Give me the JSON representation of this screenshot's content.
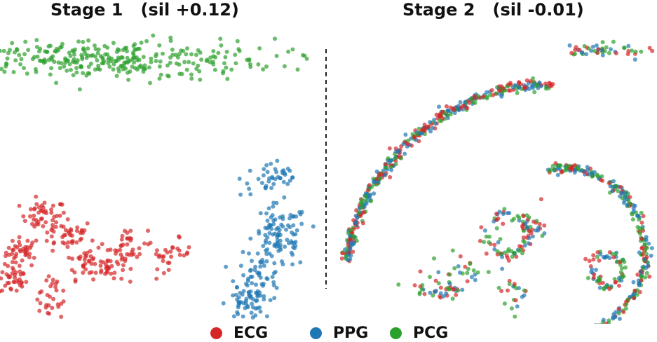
{
  "titles": {
    "left": "Stage 1   (sil +0.12)",
    "right": "Stage 2   (sil -0.01)"
  },
  "colors": {
    "ECG": "#d62728",
    "PPG": "#1f77b4",
    "PCG": "#2ca02c"
  },
  "legend": [
    {
      "label": "ECG",
      "color": "#d62728"
    },
    {
      "label": "PPG",
      "color": "#1f77b4"
    },
    {
      "label": "PCG",
      "color": "#2ca02c"
    }
  ],
  "chart_data": [
    {
      "type": "scatter",
      "title": "Stage 1   (sil +0.12)",
      "series": [
        {
          "name": "ECG",
          "clusters": [
            {
              "cx": 0.06,
              "cy": 0.38,
              "rx": 0.035,
              "ry": 0.05,
              "n": 40
            },
            {
              "cx": 0.15,
              "cy": 0.63,
              "rx": 0.05,
              "ry": 0.05,
              "n": 45
            },
            {
              "cx": 0.02,
              "cy": 0.19,
              "rx": 0.03,
              "ry": 0.05,
              "n": 35
            },
            {
              "cx": 0.25,
              "cy": 0.5,
              "rx": 0.06,
              "ry": 0.05,
              "n": 40
            },
            {
              "cx": 0.33,
              "cy": 0.32,
              "rx": 0.04,
              "ry": 0.06,
              "n": 35
            },
            {
              "cx": 0.43,
              "cy": 0.28,
              "rx": 0.035,
              "ry": 0.05,
              "n": 30
            },
            {
              "cx": 0.52,
              "cy": 0.42,
              "rx": 0.04,
              "ry": 0.06,
              "n": 35
            },
            {
              "cx": 0.69,
              "cy": 0.37,
              "rx": 0.05,
              "ry": 0.05,
              "n": 30
            },
            {
              "cx": 0.2,
              "cy": 0.12,
              "rx": 0.04,
              "ry": 0.05,
              "n": 15
            },
            {
              "cx": 0.16,
              "cy": 0.02,
              "rx": 0.03,
              "ry": 0.03,
              "n": 14
            }
          ]
        },
        {
          "name": "PPG",
          "clusters": [
            {
              "cx": 1.14,
              "cy": 0.88,
              "rx": 0.07,
              "ry": 0.06,
              "n": 40
            },
            {
              "cx": 1.17,
              "cy": 0.48,
              "rx": 0.06,
              "ry": 0.11,
              "n": 100
            },
            {
              "cx": 1.08,
              "cy": 0.2,
              "rx": 0.05,
              "ry": 0.08,
              "n": 60
            },
            {
              "cx": 1.02,
              "cy": 0.03,
              "rx": 0.04,
              "ry": 0.05,
              "n": 40
            }
          ]
        },
        {
          "name": "PCG",
          "clusters": [
            {
              "cx": 0.38,
              "cy": 1.68,
              "rx": 0.38,
              "ry": 0.07,
              "n": 330
            }
          ]
        }
      ]
    },
    {
      "type": "scatter",
      "title": "Stage 2   (sil -0.01)",
      "series": [
        {
          "name": "ECG",
          "n": 460
        },
        {
          "name": "PPG",
          "n": 460
        },
        {
          "name": "PCG",
          "n": 460
        }
      ],
      "structures": [
        "upper arc",
        "right arc",
        "inner small loop",
        "central small ring",
        "lower strand",
        "tip cluster"
      ]
    }
  ]
}
